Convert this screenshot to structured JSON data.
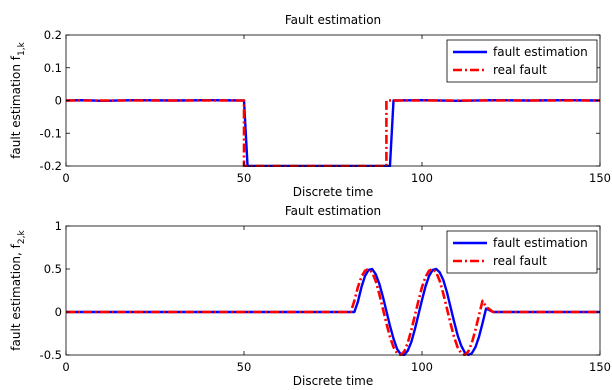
{
  "chart_data": [
    {
      "type": "line",
      "title": "Fault estimation",
      "xlabel": "Discrete time",
      "ylabel": "fault estimation f",
      "ylabel_sub": "1,k",
      "xlim": [
        0,
        150
      ],
      "ylim": [
        -0.2,
        0.2
      ],
      "xticks": [
        0,
        50,
        100,
        150
      ],
      "yticks": [
        -0.2,
        -0.1,
        0,
        0.1,
        0.2
      ],
      "xtick_labels": [
        "0",
        "50",
        "100",
        "150"
      ],
      "ytick_labels": [
        "-0.2",
        "-0.1",
        "0",
        "0.1",
        "0.2"
      ],
      "grid": false,
      "legend_position": "top-right",
      "series": [
        {
          "name": "fault estimation",
          "color": "#0000ff",
          "style": "solid",
          "x": [
            0,
            5,
            10,
            20,
            30,
            40,
            50,
            51,
            60,
            70,
            80,
            90,
            91,
            92,
            100,
            110,
            120,
            130,
            140,
            150
          ],
          "y": [
            0,
            0.001,
            -0.001,
            0.001,
            0,
            0.001,
            0,
            -0.2,
            -0.2,
            -0.2,
            -0.2,
            -0.2,
            -0.2,
            0,
            0.001,
            -0.001,
            0.001,
            0,
            0.001,
            0
          ]
        },
        {
          "name": "real fault",
          "color": "#ff0000",
          "style": "dashdot",
          "x": [
            0,
            50,
            50,
            90,
            90,
            150
          ],
          "y": [
            0,
            0,
            -0.2,
            -0.2,
            0,
            0
          ]
        }
      ]
    },
    {
      "type": "line",
      "title": "Fault estimation",
      "xlabel": "Discrete time",
      "ylabel": "fault estimation, f",
      "ylabel_sub": "2,k",
      "xlim": [
        0,
        150
      ],
      "ylim": [
        -0.5,
        1
      ],
      "xticks": [
        0,
        50,
        100,
        150
      ],
      "yticks": [
        -0.5,
        0,
        0.5,
        1
      ],
      "xtick_labels": [
        "0",
        "50",
        "100",
        "150"
      ],
      "ytick_labels": [
        "-0.5",
        "0",
        "0.5",
        "1"
      ],
      "grid": false,
      "legend_position": "top-right",
      "series": [
        {
          "name": "fault estimation",
          "color": "#0000ff",
          "style": "solid",
          "x": [
            0,
            10,
            20,
            30,
            40,
            50,
            60,
            70,
            80,
            81,
            82,
            83,
            84,
            85,
            86,
            87,
            88,
            89,
            90,
            91,
            92,
            93,
            94,
            95,
            96,
            97,
            98,
            99,
            100,
            101,
            102,
            103,
            104,
            105,
            106,
            107,
            108,
            109,
            110,
            111,
            112,
            113,
            114,
            115,
            116,
            117,
            118,
            119,
            120,
            121,
            130,
            140,
            150
          ],
          "y": [
            0,
            0,
            0,
            0,
            0,
            0,
            0,
            0,
            0,
            0,
            0.12,
            0.29,
            0.42,
            0.49,
            0.5,
            0.44,
            0.33,
            0.18,
            0.01,
            -0.16,
            -0.31,
            -0.43,
            -0.49,
            -0.5,
            -0.45,
            -0.35,
            -0.2,
            -0.03,
            0.14,
            0.3,
            0.42,
            0.49,
            0.5,
            0.46,
            0.37,
            0.23,
            0.06,
            -0.11,
            -0.27,
            -0.39,
            -0.47,
            -0.5,
            -0.48,
            -0.41,
            -0.29,
            -0.13,
            0.04,
            0.02,
            0,
            0,
            0,
            0,
            0
          ]
        },
        {
          "name": "real fault",
          "color": "#ff0000",
          "style": "dashdot",
          "x": [
            0,
            10,
            20,
            30,
            40,
            50,
            60,
            70,
            80,
            81,
            82,
            83,
            84,
            85,
            86,
            87,
            88,
            89,
            90,
            91,
            92,
            93,
            94,
            95,
            96,
            97,
            98,
            99,
            100,
            101,
            102,
            103,
            104,
            105,
            106,
            107,
            108,
            109,
            110,
            111,
            112,
            113,
            114,
            115,
            116,
            117,
            118,
            119,
            120,
            121,
            130,
            140,
            150
          ],
          "y": [
            0,
            0,
            0,
            0,
            0,
            0,
            0,
            0,
            0,
            0.13,
            0.29,
            0.41,
            0.48,
            0.5,
            0.46,
            0.36,
            0.21,
            0.04,
            -0.13,
            -0.29,
            -0.41,
            -0.48,
            -0.5,
            -0.46,
            -0.36,
            -0.21,
            -0.04,
            0.13,
            0.29,
            0.41,
            0.48,
            0.5,
            0.46,
            0.36,
            0.21,
            0.04,
            -0.13,
            -0.29,
            -0.41,
            -0.48,
            -0.5,
            -0.46,
            -0.36,
            -0.21,
            -0.04,
            0.13,
            0.06,
            0.03,
            0,
            0,
            0,
            0,
            0
          ]
        }
      ]
    }
  ]
}
